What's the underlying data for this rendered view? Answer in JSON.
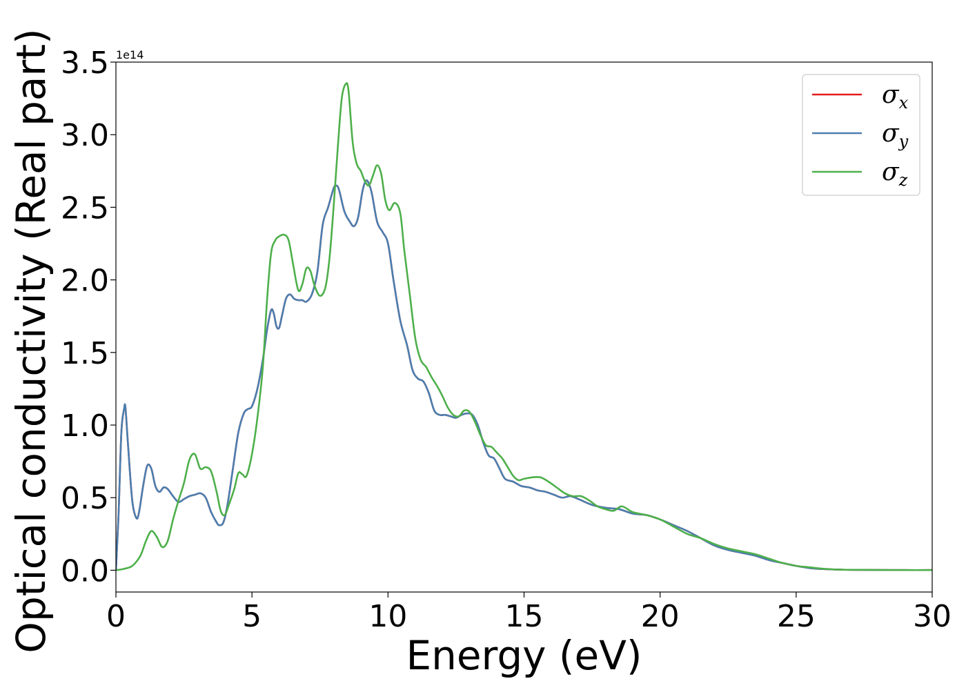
{
  "chart_data": {
    "type": "line",
    "xlabel": "Energy (eV)",
    "ylabel": "Optical conductivity (Real part)",
    "y_offset_label": "1e14",
    "y_scale": 100000000000000.0,
    "xlim": [
      0,
      30
    ],
    "ylim": [
      -0.15,
      3.5
    ],
    "x_ticks": [
      0,
      5,
      10,
      15,
      20,
      25,
      30
    ],
    "x_tick_labels": [
      "0",
      "5",
      "10",
      "15",
      "20",
      "25",
      "30"
    ],
    "y_ticks": [
      0.0,
      0.5,
      1.0,
      1.5,
      2.0,
      2.5,
      3.0,
      3.5
    ],
    "y_tick_labels": [
      "0.0",
      "0.5",
      "1.0",
      "1.5",
      "2.0",
      "2.5",
      "3.0",
      "3.5"
    ],
    "grid": false,
    "legend_position": "top-right",
    "series": [
      {
        "name": "σ",
        "subscript": "x",
        "color": "#e41a1c",
        "x": [
          0,
          0.1,
          0.2,
          0.3,
          0.35,
          0.45,
          0.6,
          0.75,
          0.85,
          1.0,
          1.15,
          1.3,
          1.45,
          1.6,
          1.75,
          1.9,
          2.1,
          2.3,
          2.5,
          2.7,
          2.9,
          3.1,
          3.3,
          3.5,
          3.7,
          3.8,
          3.95,
          4.1,
          4.3,
          4.5,
          4.7,
          4.85,
          5.0,
          5.2,
          5.4,
          5.55,
          5.7,
          5.8,
          5.9,
          6.0,
          6.1,
          6.25,
          6.4,
          6.55,
          6.7,
          6.85,
          7.0,
          7.2,
          7.4,
          7.6,
          7.8,
          8.0,
          8.1,
          8.2,
          8.4,
          8.6,
          8.75,
          8.9,
          9.05,
          9.15,
          9.25,
          9.4,
          9.6,
          9.8,
          10.0,
          10.2,
          10.45,
          10.7,
          10.9,
          11.1,
          11.3,
          11.5,
          11.7,
          11.9,
          12.1,
          12.3,
          12.5,
          12.7,
          12.9,
          13.1,
          13.3,
          13.5,
          13.7,
          13.9,
          14.1,
          14.3,
          14.6,
          14.9,
          15.2,
          15.5,
          15.8,
          16.1,
          16.4,
          16.7,
          17.0,
          17.5,
          18.0,
          18.5,
          19.0,
          19.5,
          20.0,
          20.5,
          21.0,
          21.5,
          22.0,
          22.5,
          23.0,
          23.5,
          24.0,
          24.5,
          25.0,
          25.5,
          26.0,
          26.5,
          27.0,
          28.0,
          29.0,
          30.0
        ],
        "y": [
          0.0,
          0.4,
          0.95,
          1.11,
          1.12,
          0.85,
          0.48,
          0.36,
          0.4,
          0.58,
          0.72,
          0.7,
          0.58,
          0.54,
          0.57,
          0.56,
          0.51,
          0.47,
          0.49,
          0.51,
          0.52,
          0.53,
          0.5,
          0.4,
          0.33,
          0.31,
          0.33,
          0.45,
          0.7,
          0.95,
          1.08,
          1.11,
          1.13,
          1.25,
          1.45,
          1.65,
          1.79,
          1.77,
          1.68,
          1.67,
          1.75,
          1.87,
          1.9,
          1.87,
          1.86,
          1.86,
          1.85,
          1.9,
          2.05,
          2.38,
          2.5,
          2.63,
          2.65,
          2.62,
          2.47,
          2.4,
          2.37,
          2.43,
          2.6,
          2.67,
          2.68,
          2.6,
          2.4,
          2.33,
          2.25,
          2.0,
          1.72,
          1.55,
          1.38,
          1.32,
          1.3,
          1.22,
          1.1,
          1.07,
          1.07,
          1.06,
          1.05,
          1.07,
          1.08,
          1.07,
          1.0,
          0.88,
          0.79,
          0.77,
          0.7,
          0.63,
          0.61,
          0.58,
          0.57,
          0.55,
          0.54,
          0.52,
          0.5,
          0.51,
          0.49,
          0.45,
          0.43,
          0.42,
          0.39,
          0.38,
          0.35,
          0.31,
          0.27,
          0.22,
          0.17,
          0.14,
          0.12,
          0.1,
          0.07,
          0.05,
          0.03,
          0.015,
          0.008,
          0.005,
          0.003,
          0.002,
          0.001,
          0.001
        ]
      },
      {
        "name": "σ",
        "subscript": "y",
        "color": "#4a7fb0",
        "x": [
          0,
          0.1,
          0.2,
          0.3,
          0.35,
          0.45,
          0.6,
          0.75,
          0.85,
          1.0,
          1.15,
          1.3,
          1.45,
          1.6,
          1.75,
          1.9,
          2.1,
          2.3,
          2.5,
          2.7,
          2.9,
          3.1,
          3.3,
          3.5,
          3.7,
          3.8,
          3.95,
          4.1,
          4.3,
          4.5,
          4.7,
          4.85,
          5.0,
          5.2,
          5.4,
          5.55,
          5.7,
          5.8,
          5.9,
          6.0,
          6.1,
          6.25,
          6.4,
          6.55,
          6.7,
          6.85,
          7.0,
          7.2,
          7.4,
          7.6,
          7.8,
          8.0,
          8.1,
          8.2,
          8.4,
          8.6,
          8.75,
          8.9,
          9.05,
          9.15,
          9.25,
          9.4,
          9.6,
          9.8,
          10.0,
          10.2,
          10.45,
          10.7,
          10.9,
          11.1,
          11.3,
          11.5,
          11.7,
          11.9,
          12.1,
          12.3,
          12.5,
          12.7,
          12.9,
          13.1,
          13.3,
          13.5,
          13.7,
          13.9,
          14.1,
          14.3,
          14.6,
          14.9,
          15.2,
          15.5,
          15.8,
          16.1,
          16.4,
          16.7,
          17.0,
          17.5,
          18.0,
          18.5,
          19.0,
          19.5,
          20.0,
          20.5,
          21.0,
          21.5,
          22.0,
          22.5,
          23.0,
          23.5,
          24.0,
          24.5,
          25.0,
          25.5,
          26.0,
          26.5,
          27.0,
          28.0,
          29.0,
          30.0
        ],
        "y": [
          0.0,
          0.4,
          0.95,
          1.11,
          1.12,
          0.85,
          0.48,
          0.36,
          0.4,
          0.58,
          0.72,
          0.7,
          0.58,
          0.54,
          0.57,
          0.56,
          0.51,
          0.47,
          0.49,
          0.51,
          0.52,
          0.53,
          0.5,
          0.4,
          0.33,
          0.31,
          0.33,
          0.45,
          0.7,
          0.95,
          1.08,
          1.11,
          1.13,
          1.25,
          1.45,
          1.65,
          1.79,
          1.77,
          1.68,
          1.67,
          1.75,
          1.87,
          1.9,
          1.87,
          1.86,
          1.86,
          1.85,
          1.9,
          2.05,
          2.38,
          2.5,
          2.63,
          2.65,
          2.62,
          2.47,
          2.4,
          2.37,
          2.43,
          2.6,
          2.67,
          2.68,
          2.6,
          2.4,
          2.33,
          2.25,
          2.0,
          1.72,
          1.55,
          1.38,
          1.32,
          1.3,
          1.22,
          1.1,
          1.07,
          1.07,
          1.06,
          1.05,
          1.07,
          1.08,
          1.07,
          1.0,
          0.88,
          0.79,
          0.77,
          0.7,
          0.63,
          0.61,
          0.58,
          0.57,
          0.55,
          0.54,
          0.52,
          0.5,
          0.51,
          0.49,
          0.45,
          0.43,
          0.42,
          0.39,
          0.38,
          0.35,
          0.31,
          0.27,
          0.22,
          0.17,
          0.14,
          0.12,
          0.1,
          0.07,
          0.05,
          0.03,
          0.015,
          0.008,
          0.005,
          0.003,
          0.002,
          0.001,
          0.001
        ]
      },
      {
        "name": "σ",
        "subscript": "z",
        "color": "#4daf4a",
        "x": [
          0,
          0.3,
          0.6,
          0.9,
          1.1,
          1.3,
          1.5,
          1.7,
          1.9,
          2.1,
          2.3,
          2.5,
          2.7,
          2.9,
          3.1,
          3.3,
          3.5,
          3.7,
          3.85,
          4.0,
          4.15,
          4.35,
          4.5,
          4.65,
          4.8,
          5.0,
          5.2,
          5.4,
          5.55,
          5.7,
          5.85,
          6.0,
          6.2,
          6.35,
          6.5,
          6.7,
          6.85,
          7.0,
          7.15,
          7.3,
          7.5,
          7.7,
          7.85,
          8.0,
          8.15,
          8.3,
          8.45,
          8.55,
          8.7,
          8.85,
          9.0,
          9.15,
          9.3,
          9.45,
          9.6,
          9.75,
          9.9,
          10.05,
          10.25,
          10.45,
          10.6,
          10.8,
          11.0,
          11.2,
          11.4,
          11.6,
          11.8,
          12.0,
          12.2,
          12.4,
          12.6,
          12.8,
          13.0,
          13.2,
          13.4,
          13.6,
          13.8,
          14.0,
          14.2,
          14.4,
          14.6,
          14.8,
          15.0,
          15.3,
          15.6,
          15.9,
          16.2,
          16.5,
          16.8,
          17.1,
          17.4,
          17.7,
          18.0,
          18.3,
          18.6,
          19.0,
          19.5,
          20.0,
          20.5,
          21.0,
          21.5,
          22.0,
          22.5,
          23.0,
          23.5,
          24.0,
          24.5,
          25.0,
          25.5,
          26.0,
          26.5,
          27.0,
          28.0,
          29.0,
          30.0
        ],
        "y": [
          0.0,
          0.01,
          0.03,
          0.1,
          0.2,
          0.27,
          0.23,
          0.16,
          0.2,
          0.35,
          0.48,
          0.6,
          0.76,
          0.8,
          0.7,
          0.71,
          0.68,
          0.54,
          0.41,
          0.38,
          0.45,
          0.56,
          0.67,
          0.66,
          0.65,
          0.8,
          1.05,
          1.4,
          1.85,
          2.18,
          2.27,
          2.3,
          2.31,
          2.27,
          2.12,
          1.93,
          1.97,
          2.08,
          2.06,
          1.96,
          1.89,
          1.95,
          2.15,
          2.5,
          2.9,
          3.25,
          3.35,
          3.3,
          2.95,
          2.8,
          2.75,
          2.68,
          2.65,
          2.72,
          2.79,
          2.73,
          2.55,
          2.48,
          2.53,
          2.46,
          2.2,
          1.9,
          1.6,
          1.45,
          1.4,
          1.33,
          1.27,
          1.2,
          1.12,
          1.07,
          1.06,
          1.1,
          1.09,
          1.02,
          0.93,
          0.86,
          0.85,
          0.81,
          0.77,
          0.71,
          0.65,
          0.62,
          0.63,
          0.64,
          0.64,
          0.61,
          0.57,
          0.53,
          0.51,
          0.51,
          0.48,
          0.44,
          0.42,
          0.41,
          0.44,
          0.4,
          0.38,
          0.35,
          0.3,
          0.25,
          0.22,
          0.18,
          0.15,
          0.13,
          0.11,
          0.08,
          0.05,
          0.03,
          0.02,
          0.01,
          0.005,
          0.003,
          0.002,
          0.001,
          0.001
        ]
      }
    ]
  }
}
